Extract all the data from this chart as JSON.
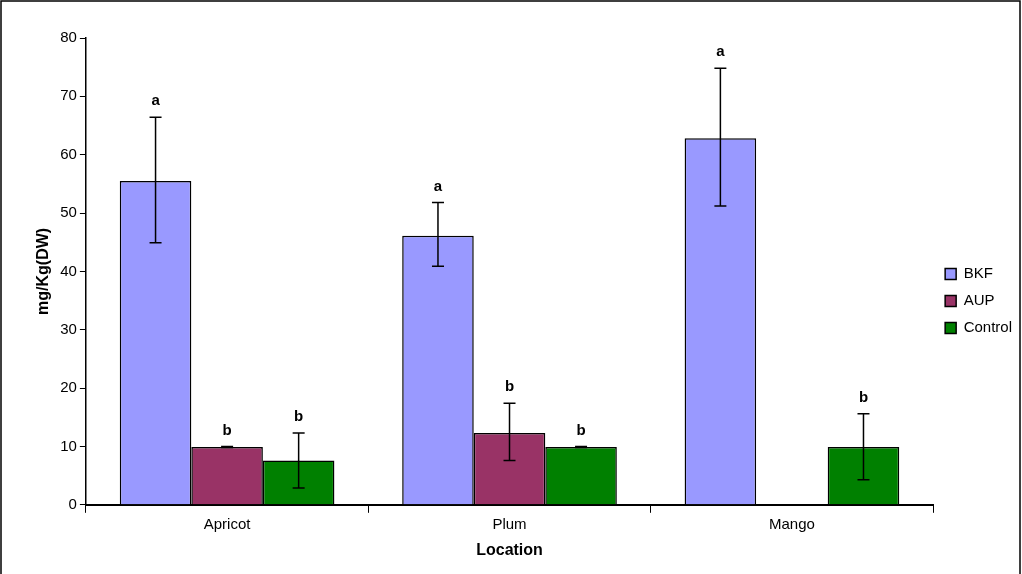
{
  "chart_data": {
    "type": "bar",
    "xlabel": "Location",
    "ylabel": "mg/Kg(DW)",
    "categories": [
      "Apricot",
      "Plum",
      "Mango"
    ],
    "series": [
      {
        "name": "BKF",
        "color": "#9999ff",
        "values": [
          55.5,
          46.1,
          62.8
        ],
        "errors": [
          [
            44.9,
            66.4
          ],
          [
            40.9,
            51.8
          ],
          [
            51.2,
            74.8
          ]
        ]
      },
      {
        "name": "AUP",
        "color": "#993366",
        "values": [
          9.9,
          12.3,
          null
        ],
        "errors": [
          [
            9.8,
            10.0
          ],
          [
            7.6,
            17.4
          ],
          null
        ]
      },
      {
        "name": "Control",
        "color": "#008000",
        "values": [
          7.6,
          9.9,
          9.9
        ],
        "errors": [
          [
            2.9,
            12.3
          ],
          [
            9.8,
            10.0
          ],
          [
            4.3,
            15.6
          ]
        ]
      }
    ],
    "ylim": [
      0,
      80
    ],
    "yticks": [
      0,
      10,
      20,
      30,
      40,
      50,
      60,
      70,
      80
    ],
    "grid": false,
    "legend": "right",
    "annotations": [
      "a",
      "b",
      "b",
      "a",
      "b",
      "b",
      "a",
      "b"
    ]
  }
}
